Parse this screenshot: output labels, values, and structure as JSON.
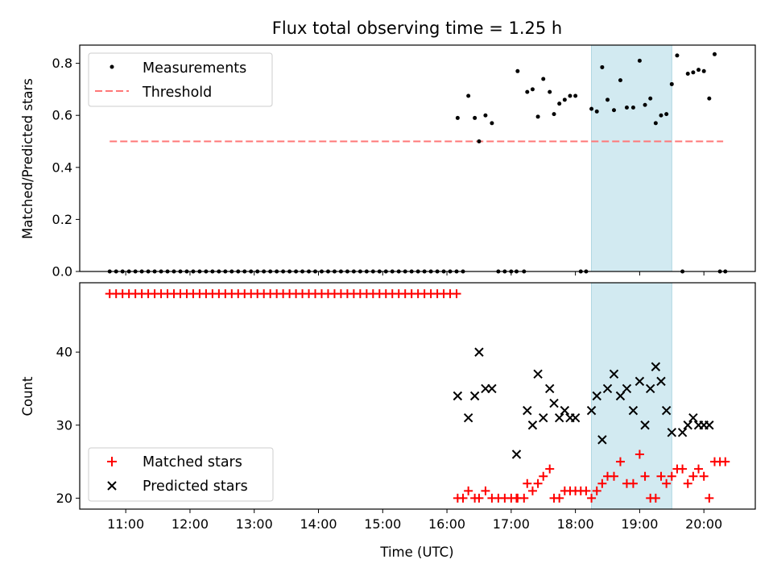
{
  "chart_data": [
    {
      "type": "scatter",
      "title": "Flux total observing time = 1.25 h",
      "xlabel": "",
      "ylabel": "Matched/Predicted stars",
      "xlim": [
        "10:17",
        "20:48"
      ],
      "ylim": [
        0,
        0.87
      ],
      "yticks": [
        0.0,
        0.2,
        0.4,
        0.6,
        0.8
      ],
      "ytick_labels": [
        "0.0",
        "0.2",
        "0.4",
        "0.6",
        "0.8"
      ],
      "legend": {
        "position": "top-left",
        "entries": [
          "Measurements",
          "Threshold"
        ]
      },
      "highlight": {
        "x_start": "18:15",
        "x_end": "19:30",
        "color": "#add8e6"
      },
      "threshold": {
        "name": "Threshold",
        "y": 0.5,
        "x_start": "10:45",
        "x_end": "20:18",
        "color": "#ff7777",
        "style": "dashed"
      },
      "series": [
        {
          "name": "Measurements",
          "marker": "dot",
          "color": "#000000",
          "x": [
            "10:45",
            "10:51",
            "10:57",
            "11:03",
            "11:09",
            "11:15",
            "11:21",
            "11:27",
            "11:33",
            "11:39",
            "11:45",
            "11:51",
            "11:57",
            "12:03",
            "12:09",
            "12:15",
            "12:21",
            "12:27",
            "12:33",
            "12:39",
            "12:45",
            "12:51",
            "12:57",
            "13:03",
            "13:09",
            "13:15",
            "13:21",
            "13:27",
            "13:33",
            "13:39",
            "13:45",
            "13:51",
            "13:57",
            "14:03",
            "14:09",
            "14:15",
            "14:21",
            "14:27",
            "14:33",
            "14:39",
            "14:45",
            "14:51",
            "14:57",
            "15:03",
            "15:09",
            "15:15",
            "15:21",
            "15:27",
            "15:33",
            "15:39",
            "15:45",
            "15:51",
            "15:57",
            "16:03",
            "16:09",
            "16:10",
            "16:15",
            "16:20",
            "16:26",
            "16:30",
            "16:36",
            "16:42",
            "16:48",
            "16:54",
            "17:00",
            "17:05",
            "17:06",
            "17:12",
            "17:15",
            "17:20",
            "17:25",
            "17:30",
            "17:36",
            "17:40",
            "17:45",
            "17:50",
            "17:55",
            "18:00",
            "18:05",
            "18:10",
            "18:15",
            "18:20",
            "18:25",
            "18:30",
            "18:36",
            "18:42",
            "18:48",
            "18:54",
            "19:00",
            "19:05",
            "19:10",
            "19:15",
            "19:20",
            "19:25",
            "19:30",
            "19:35",
            "19:40",
            "19:45",
            "19:50",
            "19:55",
            "20:00",
            "20:05",
            "20:10",
            "20:15",
            "20:20"
          ],
          "y": [
            0,
            0,
            0,
            0,
            0,
            0,
            0,
            0,
            0,
            0,
            0,
            0,
            0,
            0,
            0,
            0,
            0,
            0,
            0,
            0,
            0,
            0,
            0,
            0,
            0,
            0,
            0,
            0,
            0,
            0,
            0,
            0,
            0,
            0,
            0,
            0,
            0,
            0,
            0,
            0,
            0,
            0,
            0,
            0,
            0,
            0,
            0,
            0,
            0,
            0,
            0,
            0,
            0,
            0,
            0,
            0.59,
            0,
            0.675,
            0.59,
            0.5,
            0.6,
            0.57,
            0,
            0,
            0,
            0,
            0.77,
            0,
            0.69,
            0.7,
            0.595,
            0.74,
            0.69,
            0.605,
            0.645,
            0.66,
            0.675,
            0.675,
            0,
            0,
            0.625,
            0.615,
            0.785,
            0.66,
            0.62,
            0.735,
            0.63,
            0.63,
            0.81,
            0.64,
            0.665,
            0.57,
            0.6,
            0.605,
            0.72,
            0.83,
            0,
            0.76,
            0.765,
            0.775,
            0.77,
            0.665,
            0.835,
            0,
            0
          ]
        }
      ]
    },
    {
      "type": "scatter",
      "title": "",
      "xlabel": "Time (UTC)",
      "ylabel": "Count",
      "xlim": [
        "10:17",
        "20:48"
      ],
      "xticks": [
        "11:00",
        "12:00",
        "13:00",
        "14:00",
        "15:00",
        "16:00",
        "17:00",
        "18:00",
        "19:00",
        "20:00"
      ],
      "ylim": [
        18.5,
        49.5
      ],
      "yticks": [
        20,
        30,
        40
      ],
      "ytick_labels": [
        "20",
        "30",
        "40"
      ],
      "legend": {
        "position": "bottom-left",
        "entries": [
          "Matched stars",
          "Predicted stars"
        ]
      },
      "highlight": {
        "x_start": "18:15",
        "x_end": "19:30",
        "color": "#add8e6"
      },
      "series": [
        {
          "name": "Matched stars",
          "marker": "plus",
          "color": "#ff0000",
          "x": [
            "10:45",
            "10:51",
            "10:57",
            "11:03",
            "11:09",
            "11:15",
            "11:21",
            "11:27",
            "11:33",
            "11:39",
            "11:45",
            "11:51",
            "11:57",
            "12:03",
            "12:09",
            "12:15",
            "12:21",
            "12:27",
            "12:33",
            "12:39",
            "12:45",
            "12:51",
            "12:57",
            "13:03",
            "13:09",
            "13:15",
            "13:21",
            "13:27",
            "13:33",
            "13:39",
            "13:45",
            "13:51",
            "13:57",
            "14:03",
            "14:09",
            "14:15",
            "14:21",
            "14:27",
            "14:33",
            "14:39",
            "14:45",
            "14:51",
            "14:57",
            "15:03",
            "15:09",
            "15:15",
            "15:21",
            "15:27",
            "15:33",
            "15:39",
            "15:45",
            "15:51",
            "15:57",
            "16:03",
            "16:09",
            "16:10",
            "16:15",
            "16:20",
            "16:26",
            "16:30",
            "16:36",
            "16:42",
            "16:48",
            "16:54",
            "17:00",
            "17:05",
            "17:06",
            "17:12",
            "17:15",
            "17:20",
            "17:25",
            "17:30",
            "17:36",
            "17:40",
            "17:45",
            "17:50",
            "17:55",
            "18:00",
            "18:05",
            "18:10",
            "18:15",
            "18:20",
            "18:25",
            "18:30",
            "18:36",
            "18:42",
            "18:48",
            "18:54",
            "19:00",
            "19:05",
            "19:10",
            "19:15",
            "19:20",
            "19:25",
            "19:30",
            "19:35",
            "19:40",
            "19:45",
            "19:50",
            "19:55",
            "20:00",
            "20:05",
            "20:10",
            "20:15",
            "20:20"
          ],
          "y": [
            48,
            48,
            48,
            48,
            48,
            48,
            48,
            48,
            48,
            48,
            48,
            48,
            48,
            48,
            48,
            48,
            48,
            48,
            48,
            48,
            48,
            48,
            48,
            48,
            48,
            48,
            48,
            48,
            48,
            48,
            48,
            48,
            48,
            48,
            48,
            48,
            48,
            48,
            48,
            48,
            48,
            48,
            48,
            48,
            48,
            48,
            48,
            48,
            48,
            48,
            48,
            48,
            48,
            48,
            48,
            20,
            20,
            21,
            20,
            20,
            21,
            20,
            20,
            20,
            20,
            20,
            20,
            20,
            22,
            21,
            22,
            23,
            24,
            20,
            20,
            21,
            21,
            21,
            21,
            21,
            20,
            21,
            22,
            23,
            23,
            25,
            22,
            22,
            26,
            23,
            20,
            20,
            23,
            22,
            23,
            24,
            24,
            22,
            23,
            24,
            23,
            20,
            25,
            25,
            25
          ]
        },
        {
          "name": "Predicted stars",
          "marker": "x",
          "color": "#000000",
          "x": [
            "16:10",
            "16:20",
            "16:26",
            "16:30",
            "16:36",
            "16:42",
            "17:05",
            "17:15",
            "17:20",
            "17:25",
            "17:30",
            "17:36",
            "17:40",
            "17:45",
            "17:50",
            "17:55",
            "18:00",
            "18:15",
            "18:20",
            "18:25",
            "18:30",
            "18:36",
            "18:42",
            "18:48",
            "18:54",
            "19:00",
            "19:05",
            "19:10",
            "19:15",
            "19:20",
            "19:25",
            "19:30",
            "19:40",
            "19:45",
            "19:50",
            "19:55",
            "20:00",
            "20:05"
          ],
          "y": [
            34,
            31,
            34,
            40,
            35,
            35,
            26,
            32,
            30,
            37,
            31,
            35,
            33,
            31,
            32,
            31,
            31,
            32,
            34,
            28,
            35,
            37,
            34,
            35,
            32,
            36,
            30,
            35,
            38,
            36,
            32,
            29,
            29,
            30,
            31,
            30,
            30,
            30
          ]
        }
      ]
    }
  ]
}
